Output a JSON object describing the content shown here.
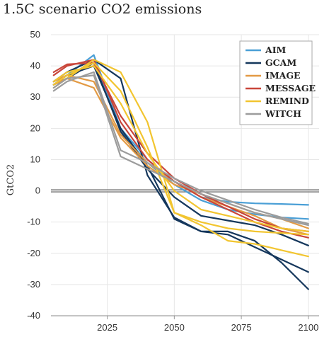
{
  "chart_data": {
    "type": "line",
    "title": "1.5C scenario CO2 emissions",
    "xlabel": "",
    "ylabel": "GtCO2",
    "xlim": [
      2004,
      2104
    ],
    "ylim": [
      -40,
      50
    ],
    "xticks": [
      2025,
      2050,
      2075,
      2100
    ],
    "yticks": [
      50,
      40,
      30,
      20,
      10,
      0,
      -10,
      -20,
      -30,
      -40
    ],
    "grid": true,
    "legend_position": "top-right",
    "series": [
      {
        "name": "AIM",
        "color": "#4a9fd6",
        "lines": [
          {
            "x": [
              2005,
              2010,
              2020,
              2030,
              2040,
              2050,
              2060,
              2070,
              2080,
              2090,
              2100
            ],
            "y": [
              35,
              37,
              43.5,
              20,
              10,
              3,
              -2,
              -3.5,
              -4,
              -4.2,
              -4.5
            ]
          },
          {
            "x": [
              2005,
              2010,
              2020,
              2030,
              2040,
              2050,
              2060,
              2070,
              2080,
              2090,
              2100
            ],
            "y": [
              34,
              36,
              42,
              19,
              9,
              2,
              -3,
              -6,
              -7.5,
              -8.5,
              -9
            ]
          }
        ]
      },
      {
        "name": "GCAM",
        "color": "#15375c",
        "lines": [
          {
            "x": [
              2005,
              2010,
              2020,
              2030,
              2040,
              2050,
              2060,
              2070,
              2080,
              2090,
              2100
            ],
            "y": [
              34,
              37,
              40,
              20,
              8,
              -9,
              -13,
              -14,
              -18,
              -22,
              -26
            ]
          },
          {
            "x": [
              2005,
              2010,
              2020,
              2030,
              2040,
              2050,
              2060,
              2070,
              2080,
              2090,
              2100
            ],
            "y": [
              35,
              38,
              42,
              36,
              5,
              -8.5,
              -13,
              -13,
              -16,
              -23,
              -31.5
            ]
          },
          {
            "x": [
              2005,
              2010,
              2020,
              2030,
              2040,
              2050,
              2060,
              2070,
              2080,
              2090,
              2100
            ],
            "y": [
              34,
              36,
              41,
              19,
              7,
              -2,
              -8,
              -9.5,
              -11,
              -14,
              -17.5
            ]
          }
        ]
      },
      {
        "name": "IMAGE",
        "color": "#e39a44",
        "lines": [
          {
            "x": [
              2005,
              2010,
              2020,
              2030,
              2040,
              2050,
              2060,
              2070,
              2080,
              2090,
              2100
            ],
            "y": [
              34,
              36,
              33,
              17,
              8,
              2,
              -1,
              -4,
              -7,
              -9,
              -12
            ]
          },
          {
            "x": [
              2005,
              2010,
              2020,
              2030,
              2040,
              2050,
              2060,
              2070,
              2080,
              2090,
              2100
            ],
            "y": [
              35,
              37,
              35,
              18,
              9,
              3,
              -2,
              -5,
              -8,
              -12,
              -14
            ]
          }
        ]
      },
      {
        "name": "MESSAGE",
        "color": "#c9463a",
        "lines": [
          {
            "x": [
              2005,
              2010,
              2020,
              2030,
              2040,
              2050,
              2060,
              2070,
              2080,
              2090,
              2100
            ],
            "y": [
              38,
              40.5,
              41,
              24,
              12,
              4,
              -1,
              -5,
              -9,
              -12,
              -13
            ]
          },
          {
            "x": [
              2005,
              2010,
              2020,
              2030,
              2040,
              2050,
              2060,
              2070,
              2080,
              2090,
              2100
            ],
            "y": [
              37,
              40,
              42,
              22,
              10,
              3,
              -2,
              -6,
              -10,
              -13,
              -15
            ]
          }
        ]
      },
      {
        "name": "REMIND",
        "color": "#f2c530",
        "lines": [
          {
            "x": [
              2005,
              2010,
              2020,
              2030,
              2040,
              2050,
              2060,
              2070,
              2080,
              2090,
              2100
            ],
            "y": [
              33,
              36,
              42,
              38,
              22,
              -7,
              -10,
              -12,
              -13,
              -13.5,
              -14
            ]
          },
          {
            "x": [
              2005,
              2010,
              2020,
              2030,
              2040,
              2050,
              2060,
              2070,
              2080,
              2090,
              2100
            ],
            "y": [
              34,
              37,
              41,
              32,
              14,
              -7,
              -11,
              -16,
              -17,
              -19,
              -21
            ]
          },
          {
            "x": [
              2005,
              2010,
              2020,
              2030,
              2040,
              2050,
              2060,
              2070,
              2080,
              2090,
              2100
            ],
            "y": [
              35,
              38,
              40,
              28,
              12,
              0,
              -6,
              -8,
              -10,
              -12,
              -13
            ]
          }
        ]
      },
      {
        "name": "WITCH",
        "color": "#9c9c9c",
        "lines": [
          {
            "x": [
              2005,
              2010,
              2020,
              2030,
              2040,
              2050,
              2060,
              2070,
              2080,
              2090,
              2100
            ],
            "y": [
              32,
              35,
              38,
              13,
              9,
              4,
              0,
              -3,
              -6,
              -8.5,
              -10.5
            ]
          },
          {
            "x": [
              2005,
              2010,
              2020,
              2030,
              2040,
              2050,
              2060,
              2070,
              2080,
              2090,
              2100
            ],
            "y": [
              33,
              36,
              37,
              11,
              7,
              3,
              -1,
              -4,
              -7,
              -9,
              -11
            ]
          }
        ]
      }
    ]
  }
}
